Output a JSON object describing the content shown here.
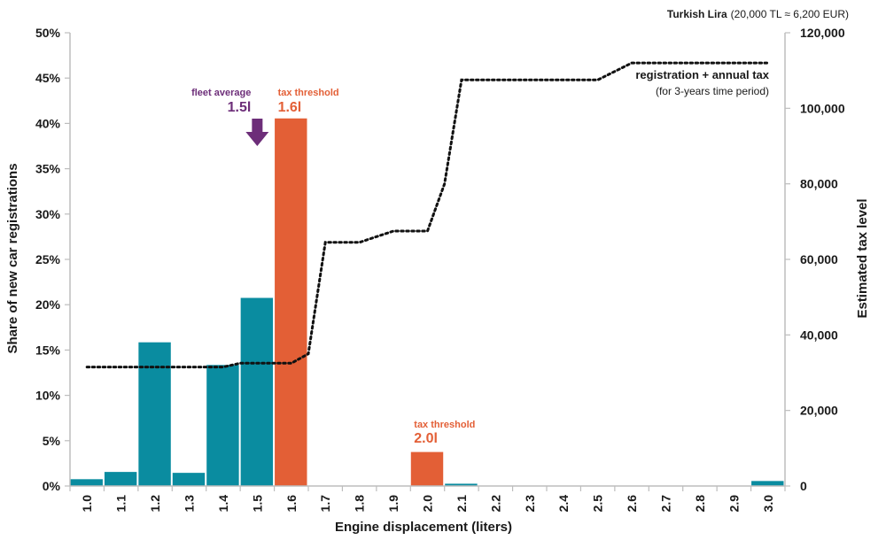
{
  "chart_data": {
    "type": "bar",
    "xlabel": "Engine displacement (liters)",
    "ylabel": "Share of new car registrations",
    "y2label": "Estimated tax level",
    "ylim": [
      0,
      50
    ],
    "y2lim": [
      0,
      120000
    ],
    "yticks": [
      "0%",
      "5%",
      "10%",
      "15%",
      "20%",
      "25%",
      "30%",
      "35%",
      "40%",
      "45%",
      "50%"
    ],
    "y2ticks": [
      "0",
      "20,000",
      "40,000",
      "60,000",
      "80,000",
      "100,000",
      "120,000"
    ],
    "categories": [
      "1.0",
      "1.1",
      "1.2",
      "1.3",
      "1.4",
      "1.5",
      "1.6",
      "1.7",
      "1.8",
      "1.9",
      "2.0",
      "2.1",
      "2.2",
      "2.3",
      "2.4",
      "2.5",
      "2.6",
      "2.7",
      "2.8",
      "2.9",
      "3.0"
    ],
    "values": [
      0.8,
      1.6,
      15.9,
      1.5,
      13.4,
      20.8,
      40.6,
      0,
      0,
      0,
      3.8,
      0.3,
      0,
      0,
      0,
      0,
      0,
      0,
      0,
      0,
      0.6
    ],
    "highlighted": [
      "1.6",
      "2.0"
    ],
    "colors": {
      "bar": "#0a8ca0",
      "highlight": "#e35f36",
      "tax_line": "#111111",
      "fleet_arrow": "#6d2e79"
    },
    "tax_series": {
      "name": "registration + annual tax",
      "points": [
        [
          1.0,
          31500
        ],
        [
          1.15,
          31500
        ],
        [
          1.4,
          31500
        ],
        [
          1.45,
          32500
        ],
        [
          1.6,
          32500
        ],
        [
          1.65,
          35000
        ],
        [
          1.7,
          64500
        ],
        [
          1.8,
          64500
        ],
        [
          1.9,
          67500
        ],
        [
          2.0,
          67500
        ],
        [
          2.05,
          80000
        ],
        [
          2.1,
          107500
        ],
        [
          2.2,
          107500
        ],
        [
          2.5,
          107500
        ],
        [
          2.6,
          112000
        ],
        [
          3.0,
          112000
        ]
      ]
    },
    "top_note": {
      "bold": "Turkish Lira",
      "rest": "(20,000 TL ≈ 6,200 EUR)"
    },
    "legend": {
      "title": "registration + annual tax",
      "sub": "(for 3-years time period)"
    },
    "annotations": {
      "fleet_average": {
        "label": "fleet average",
        "value": "1.5l",
        "x": 1.5
      },
      "tax_threshold_1": {
        "label": "tax threshold",
        "value": "1.6l",
        "x": 1.6
      },
      "tax_threshold_2": {
        "label": "tax threshold",
        "value": "2.0l",
        "x": 2.0
      }
    }
  }
}
